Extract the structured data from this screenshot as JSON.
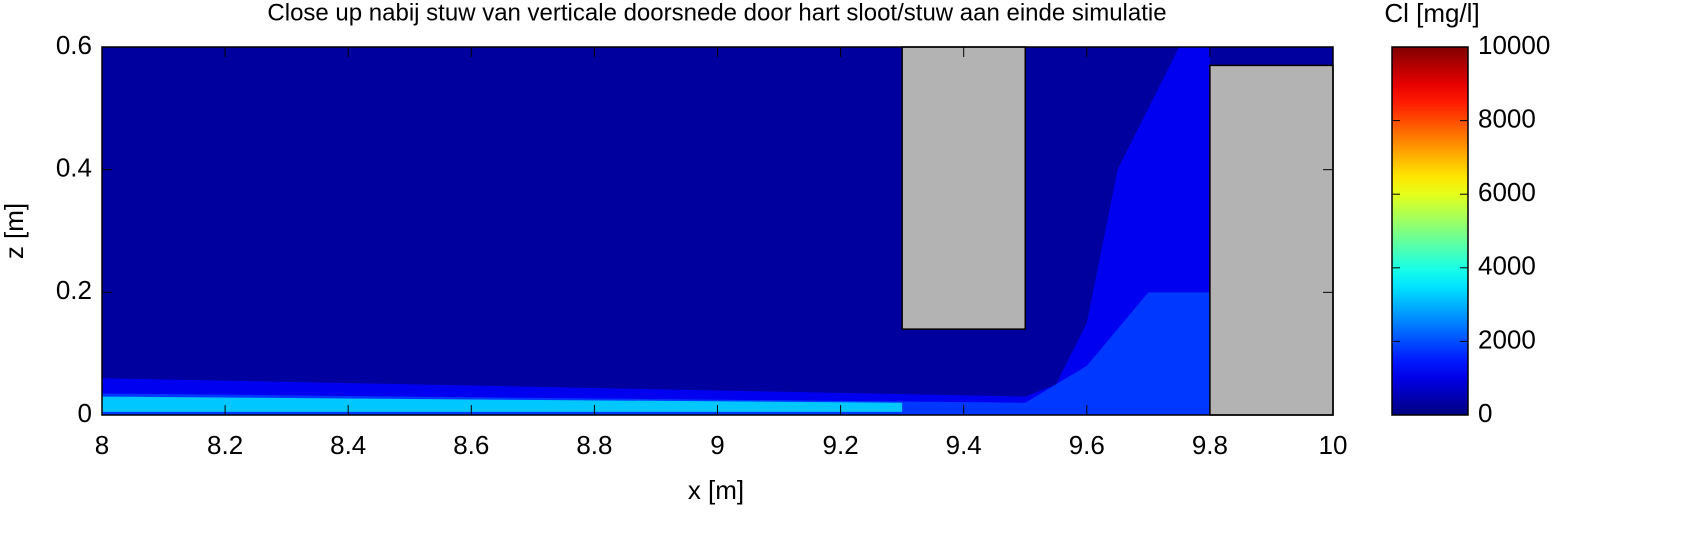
{
  "chart_data": {
    "type": "contour",
    "title": "Close up nabij stuw van verticale doorsnede door hart sloot/stuw aan einde simulatie",
    "x_label": "x [m]",
    "y_label": "z [m]",
    "xlim": [
      8,
      10
    ],
    "ylim": [
      0,
      0.6
    ],
    "xticks": [
      8,
      8.2,
      8.4,
      8.6,
      8.8,
      9,
      9.2,
      9.4,
      9.6,
      9.8,
      10
    ],
    "yticks": [
      0,
      0.2,
      0.4,
      0.6
    ],
    "colormap": "jet",
    "colorbar": {
      "label": "Cl [mg/l]",
      "clim": [
        0,
        10000
      ],
      "ticks": [
        0,
        2000,
        4000,
        6000,
        8000,
        10000
      ]
    },
    "field": [
      {
        "x": [
          8,
          10,
          10,
          8
        ],
        "z": [
          0,
          0,
          0.6,
          0.6
        ],
        "value": 300
      },
      {
        "x": [
          8,
          9.5,
          9.55,
          9.6,
          9.65,
          9.75,
          9.8,
          9.8,
          8
        ],
        "z": [
          0.06,
          0.03,
          0.05,
          0.15,
          0.4,
          0.6,
          0.6,
          0,
          0
        ],
        "value": 1100
      },
      {
        "x": [
          8,
          9.5,
          9.6,
          9.7,
          9.8,
          9.8,
          8
        ],
        "z": [
          0.035,
          0.02,
          0.08,
          0.2,
          0.2,
          0,
          0
        ],
        "value": 1800
      },
      {
        "x": [
          8,
          9.3,
          9.3,
          8
        ],
        "z": [
          0.03,
          0.02,
          0.005,
          0.005
        ],
        "value": 3200
      }
    ],
    "obstacles": [
      {
        "x": [
          9.3,
          9.5
        ],
        "z": [
          0.14,
          0.6
        ],
        "color": "#b3b3b3"
      },
      {
        "x": [
          9.8,
          10
        ],
        "z": [
          0,
          0.57
        ],
        "color": "#b3b3b3"
      }
    ]
  }
}
